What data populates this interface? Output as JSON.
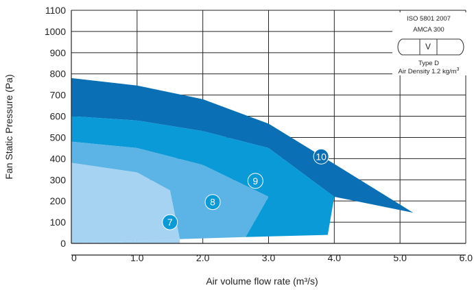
{
  "chart_data": {
    "type": "area",
    "xlabel": "Air volume flow rate (m³/s)",
    "ylabel": "Fan Static Pressure (Pa)",
    "xlim": [
      0,
      6.0
    ],
    "ylim": [
      0,
      1100
    ],
    "x_ticks": [
      "0",
      "1.0",
      "2.0",
      "3.0",
      "4.0",
      "5.0",
      "6.0"
    ],
    "y_ticks": [
      "0",
      "100",
      "200",
      "300",
      "400",
      "500",
      "600",
      "700",
      "800",
      "900",
      "1000",
      "1100"
    ],
    "grid": true,
    "series": [
      {
        "name": "10",
        "color": "#0a6fb5",
        "upper": [
          [
            0,
            780
          ],
          [
            1.0,
            745
          ],
          [
            2.0,
            680
          ],
          [
            3.0,
            565
          ],
          [
            4.0,
            375
          ],
          [
            5.2,
            145
          ]
        ],
        "lower": [
          [
            0,
            600
          ],
          [
            1.0,
            580
          ],
          [
            2.0,
            530
          ],
          [
            3.0,
            450
          ],
          [
            4.0,
            220
          ],
          [
            5.2,
            145
          ]
        ],
        "label_at": [
          3.8,
          410
        ]
      },
      {
        "name": "9",
        "color": "#0a9ad7",
        "upper": [
          [
            0,
            600
          ],
          [
            1.0,
            580
          ],
          [
            2.0,
            530
          ],
          [
            3.0,
            450
          ],
          [
            4.0,
            220
          ],
          [
            3.9,
            40
          ]
        ],
        "lower": [
          [
            0,
            480
          ],
          [
            1.0,
            450
          ],
          [
            2.0,
            370
          ],
          [
            3.0,
            220
          ],
          [
            2.65,
            30
          ]
        ],
        "label_at": [
          2.8,
          295
        ]
      },
      {
        "name": "8",
        "color": "#5bb4e5",
        "upper": [
          [
            0,
            480
          ],
          [
            1.0,
            450
          ],
          [
            2.0,
            370
          ],
          [
            3.0,
            220
          ],
          [
            2.65,
            30
          ]
        ],
        "lower": [
          [
            0,
            380
          ],
          [
            1.0,
            335
          ],
          [
            1.5,
            250
          ],
          [
            1.65,
            20
          ]
        ],
        "label_at": [
          2.15,
          195
        ]
      },
      {
        "name": "7",
        "color": "#a6d3f2",
        "upper": [
          [
            0,
            380
          ],
          [
            1.0,
            335
          ],
          [
            1.5,
            250
          ],
          [
            1.65,
            20
          ]
        ],
        "lower": [],
        "label_at": [
          1.5,
          100
        ]
      }
    ]
  },
  "inset": {
    "line1": "ISO 5801 2007",
    "line2": "AMCA 300",
    "symbol": "V",
    "line3": "Type D",
    "line4_prefix": "Air Density 1.2 kg/m",
    "line4_sup": "3"
  }
}
